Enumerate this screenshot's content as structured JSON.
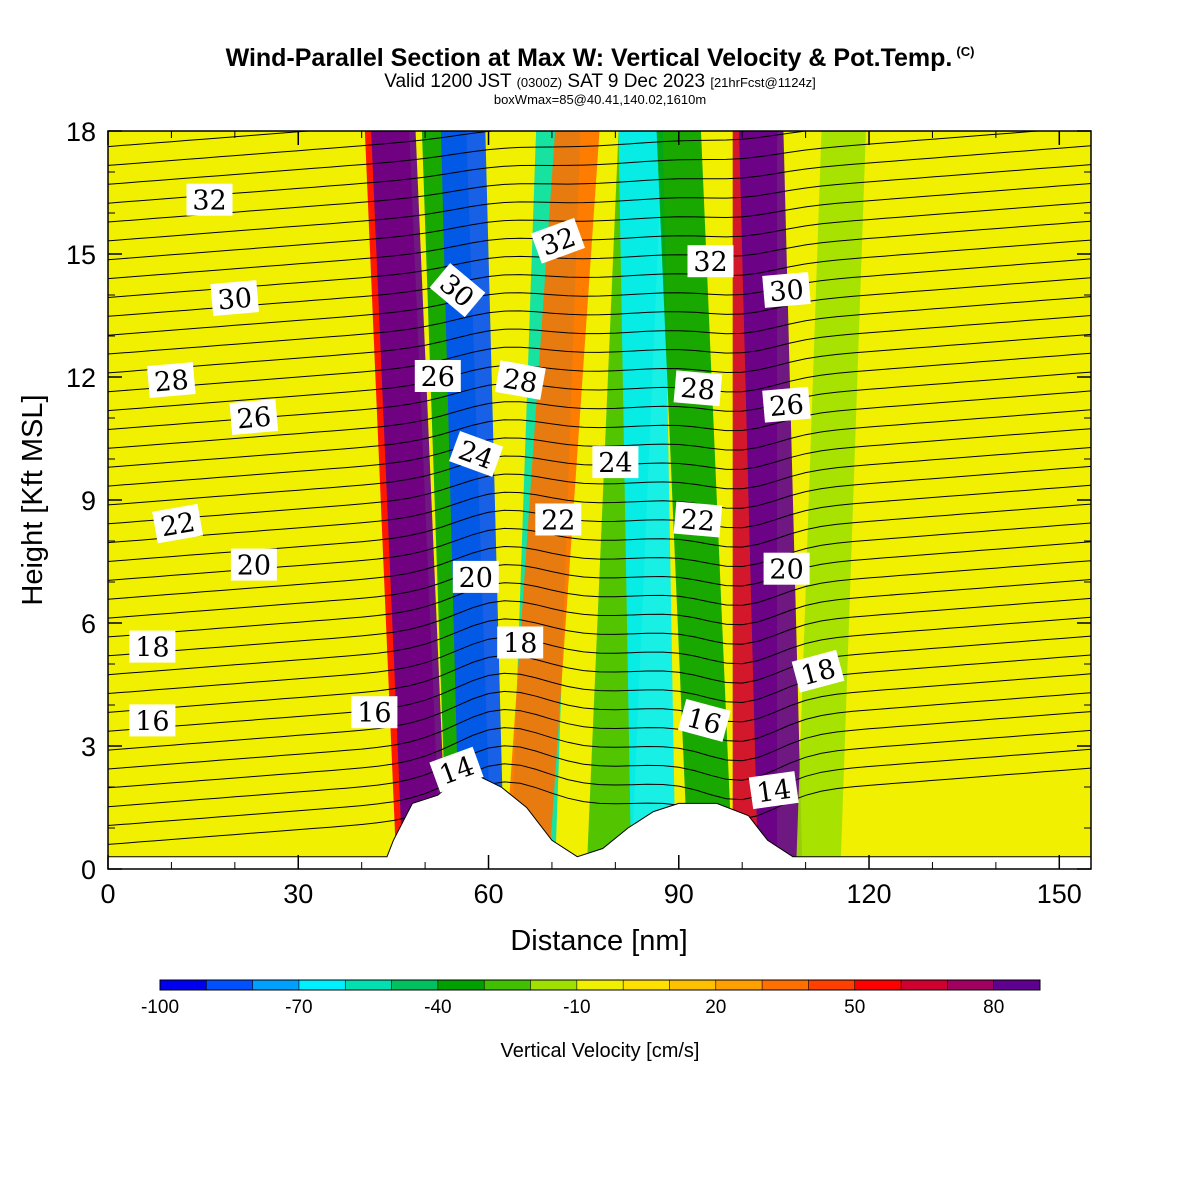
{
  "header": {
    "title": "Wind-Parallel Section at Max W: Vertical Velocity & Pot.Temp.",
    "copyright": "(C)",
    "valid_prefix": "Valid 1200 JST",
    "zulu": "(0300Z)",
    "valid_date": "SAT 9 Dec 2023",
    "forecast": "[21hrFcst@1124z]",
    "box_info": "boxWmax=85@40.41,140.02,1610m"
  },
  "chart_data": {
    "type": "heatmap",
    "xlabel": "Distance [nm]",
    "ylabel": "Height [Kft MSL]",
    "xlim": [
      0,
      155
    ],
    "ylim": [
      0,
      18
    ],
    "x_ticks": [
      0,
      30,
      60,
      90,
      120,
      150
    ],
    "x_tick_labels": [
      "0",
      "30",
      "60",
      "90",
      "120",
      "150"
    ],
    "y_ticks": [
      0,
      3,
      6,
      9,
      12,
      15,
      18
    ],
    "y_tick_labels": [
      "0",
      "3",
      "6",
      "9",
      "12",
      "15",
      "18"
    ],
    "colorbar": {
      "title": "Vertical Velocity [cm/s]",
      "tick_values": [
        -100,
        -70,
        -40,
        -10,
        20,
        50,
        80
      ],
      "tick_labels": [
        "-100",
        "-70",
        "-40",
        "-10",
        "20",
        "50",
        "80"
      ],
      "colors": [
        "#0000f0",
        "#0050ff",
        "#00a0ff",
        "#00f0ff",
        "#00e0b0",
        "#00c060",
        "#00a000",
        "#40c000",
        "#a0e000",
        "#f0f000",
        "#ffe000",
        "#ffc000",
        "#ffa000",
        "#ff7000",
        "#ff4000",
        "#ff0000",
        "#d00030",
        "#a00060",
        "#600090"
      ]
    },
    "vertical_velocity_bands": [
      {
        "x_bottom": 49,
        "x_top": 44,
        "value": 55
      },
      {
        "x_bottom": 50,
        "x_top": 45,
        "value": 85
      },
      {
        "x_bottom": 57,
        "x_top": 53,
        "value": -35
      },
      {
        "x_bottom": 59,
        "x_top": 56,
        "value": -90
      },
      {
        "x_bottom": 67,
        "x_top": 71,
        "value": -55
      },
      {
        "x_bottom": 66,
        "x_top": 74,
        "value": 35
      },
      {
        "x_bottom": 79,
        "x_top": 84,
        "value": -30
      },
      {
        "x_bottom": 86,
        "x_top": 84,
        "value": -65
      },
      {
        "x_bottom": 95,
        "x_top": 90,
        "value": -40
      },
      {
        "x_bottom": 102,
        "x_top": 102,
        "value": 60
      },
      {
        "x_bottom": 106,
        "x_top": 103,
        "value": 85
      },
      {
        "x_bottom": 112,
        "x_top": 116,
        "value": -20
      }
    ],
    "terrain": [
      {
        "x": 0,
        "h": 0.3
      },
      {
        "x": 44,
        "h": 0.3
      },
      {
        "x": 45,
        "h": 0.7
      },
      {
        "x": 48,
        "h": 1.6
      },
      {
        "x": 52,
        "h": 1.8
      },
      {
        "x": 55,
        "h": 2.2
      },
      {
        "x": 58,
        "h": 2.3
      },
      {
        "x": 62,
        "h": 2.0
      },
      {
        "x": 66,
        "h": 1.5
      },
      {
        "x": 70,
        "h": 0.7
      },
      {
        "x": 74,
        "h": 0.3
      },
      {
        "x": 78,
        "h": 0.5
      },
      {
        "x": 82,
        "h": 1.0
      },
      {
        "x": 86,
        "h": 1.4
      },
      {
        "x": 90,
        "h": 1.6
      },
      {
        "x": 96,
        "h": 1.6
      },
      {
        "x": 101,
        "h": 1.3
      },
      {
        "x": 104,
        "h": 0.7
      },
      {
        "x": 108,
        "h": 0.3
      },
      {
        "x": 155,
        "h": 0.3
      }
    ],
    "theta_labels": [
      {
        "text": "32",
        "x": 16,
        "y": 16.3,
        "rot": 0
      },
      {
        "text": "30",
        "x": 20,
        "y": 13.9,
        "rot": -5
      },
      {
        "text": "28",
        "x": 10,
        "y": 11.9,
        "rot": -5
      },
      {
        "text": "26",
        "x": 23,
        "y": 11.0,
        "rot": -5
      },
      {
        "text": "22",
        "x": 11,
        "y": 8.4,
        "rot": -10
      },
      {
        "text": "20",
        "x": 23,
        "y": 7.4,
        "rot": 0
      },
      {
        "text": "18",
        "x": 7,
        "y": 5.4,
        "rot": 0
      },
      {
        "text": "16",
        "x": 7,
        "y": 3.6,
        "rot": 0
      },
      {
        "text": "16",
        "x": 42,
        "y": 3.8,
        "rot": 0
      },
      {
        "text": "14",
        "x": 55,
        "y": 2.4,
        "rot": -20
      },
      {
        "text": "26",
        "x": 52,
        "y": 12.0,
        "rot": 0
      },
      {
        "text": "30",
        "x": 55,
        "y": 14.1,
        "rot": 40
      },
      {
        "text": "24",
        "x": 58,
        "y": 10.1,
        "rot": 20
      },
      {
        "text": "28",
        "x": 65,
        "y": 11.9,
        "rot": 10
      },
      {
        "text": "20",
        "x": 58,
        "y": 7.1,
        "rot": 0
      },
      {
        "text": "18",
        "x": 65,
        "y": 5.5,
        "rot": 0
      },
      {
        "text": "22",
        "x": 71,
        "y": 8.5,
        "rot": 0
      },
      {
        "text": "32",
        "x": 71,
        "y": 15.3,
        "rot": -20
      },
      {
        "text": "24",
        "x": 80,
        "y": 9.9,
        "rot": 0
      },
      {
        "text": "32",
        "x": 95,
        "y": 14.8,
        "rot": 0
      },
      {
        "text": "28",
        "x": 93,
        "y": 11.7,
        "rot": 5
      },
      {
        "text": "22",
        "x": 93,
        "y": 8.5,
        "rot": 5
      },
      {
        "text": "16",
        "x": 94,
        "y": 3.6,
        "rot": 15
      },
      {
        "text": "30",
        "x": 107,
        "y": 14.1,
        "rot": -5
      },
      {
        "text": "26",
        "x": 107,
        "y": 11.3,
        "rot": -5
      },
      {
        "text": "20",
        "x": 107,
        "y": 7.3,
        "rot": 0
      },
      {
        "text": "18",
        "x": 112,
        "y": 4.8,
        "rot": -15
      },
      {
        "text": "14",
        "x": 105,
        "y": 1.9,
        "rot": -8
      }
    ]
  }
}
